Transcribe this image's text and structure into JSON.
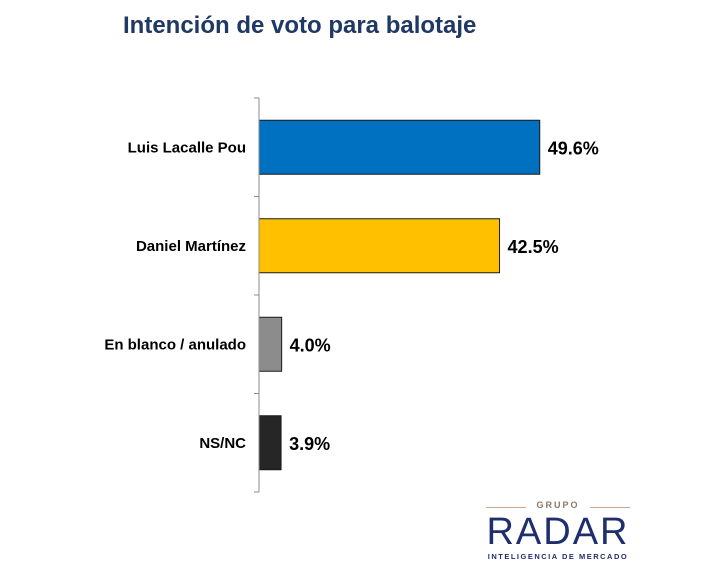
{
  "chart_data": {
    "type": "bar",
    "orientation": "horizontal",
    "title": "Intención de voto para balotaje",
    "categories": [
      "Luis Lacalle Pou",
      "Daniel Martínez",
      "En blanco / anulado",
      "NS/NC"
    ],
    "values": [
      49.6,
      42.5,
      4.0,
      3.9
    ],
    "value_labels": [
      "49.6%",
      "42.5%",
      "4.0%",
      "3.9%"
    ],
    "bar_colors": [
      "#0070c0",
      "#ffc000",
      "#8c8c8c",
      "#262626"
    ],
    "xlim": [
      0,
      100
    ],
    "grid": false,
    "legend": "none"
  },
  "logo": {
    "top": "GRUPO",
    "main": "RADAR",
    "sub": "INTELIGENCIA DE MERCADO"
  },
  "colors": {
    "title": "#1f3864",
    "logo": "#1f2f6e"
  }
}
